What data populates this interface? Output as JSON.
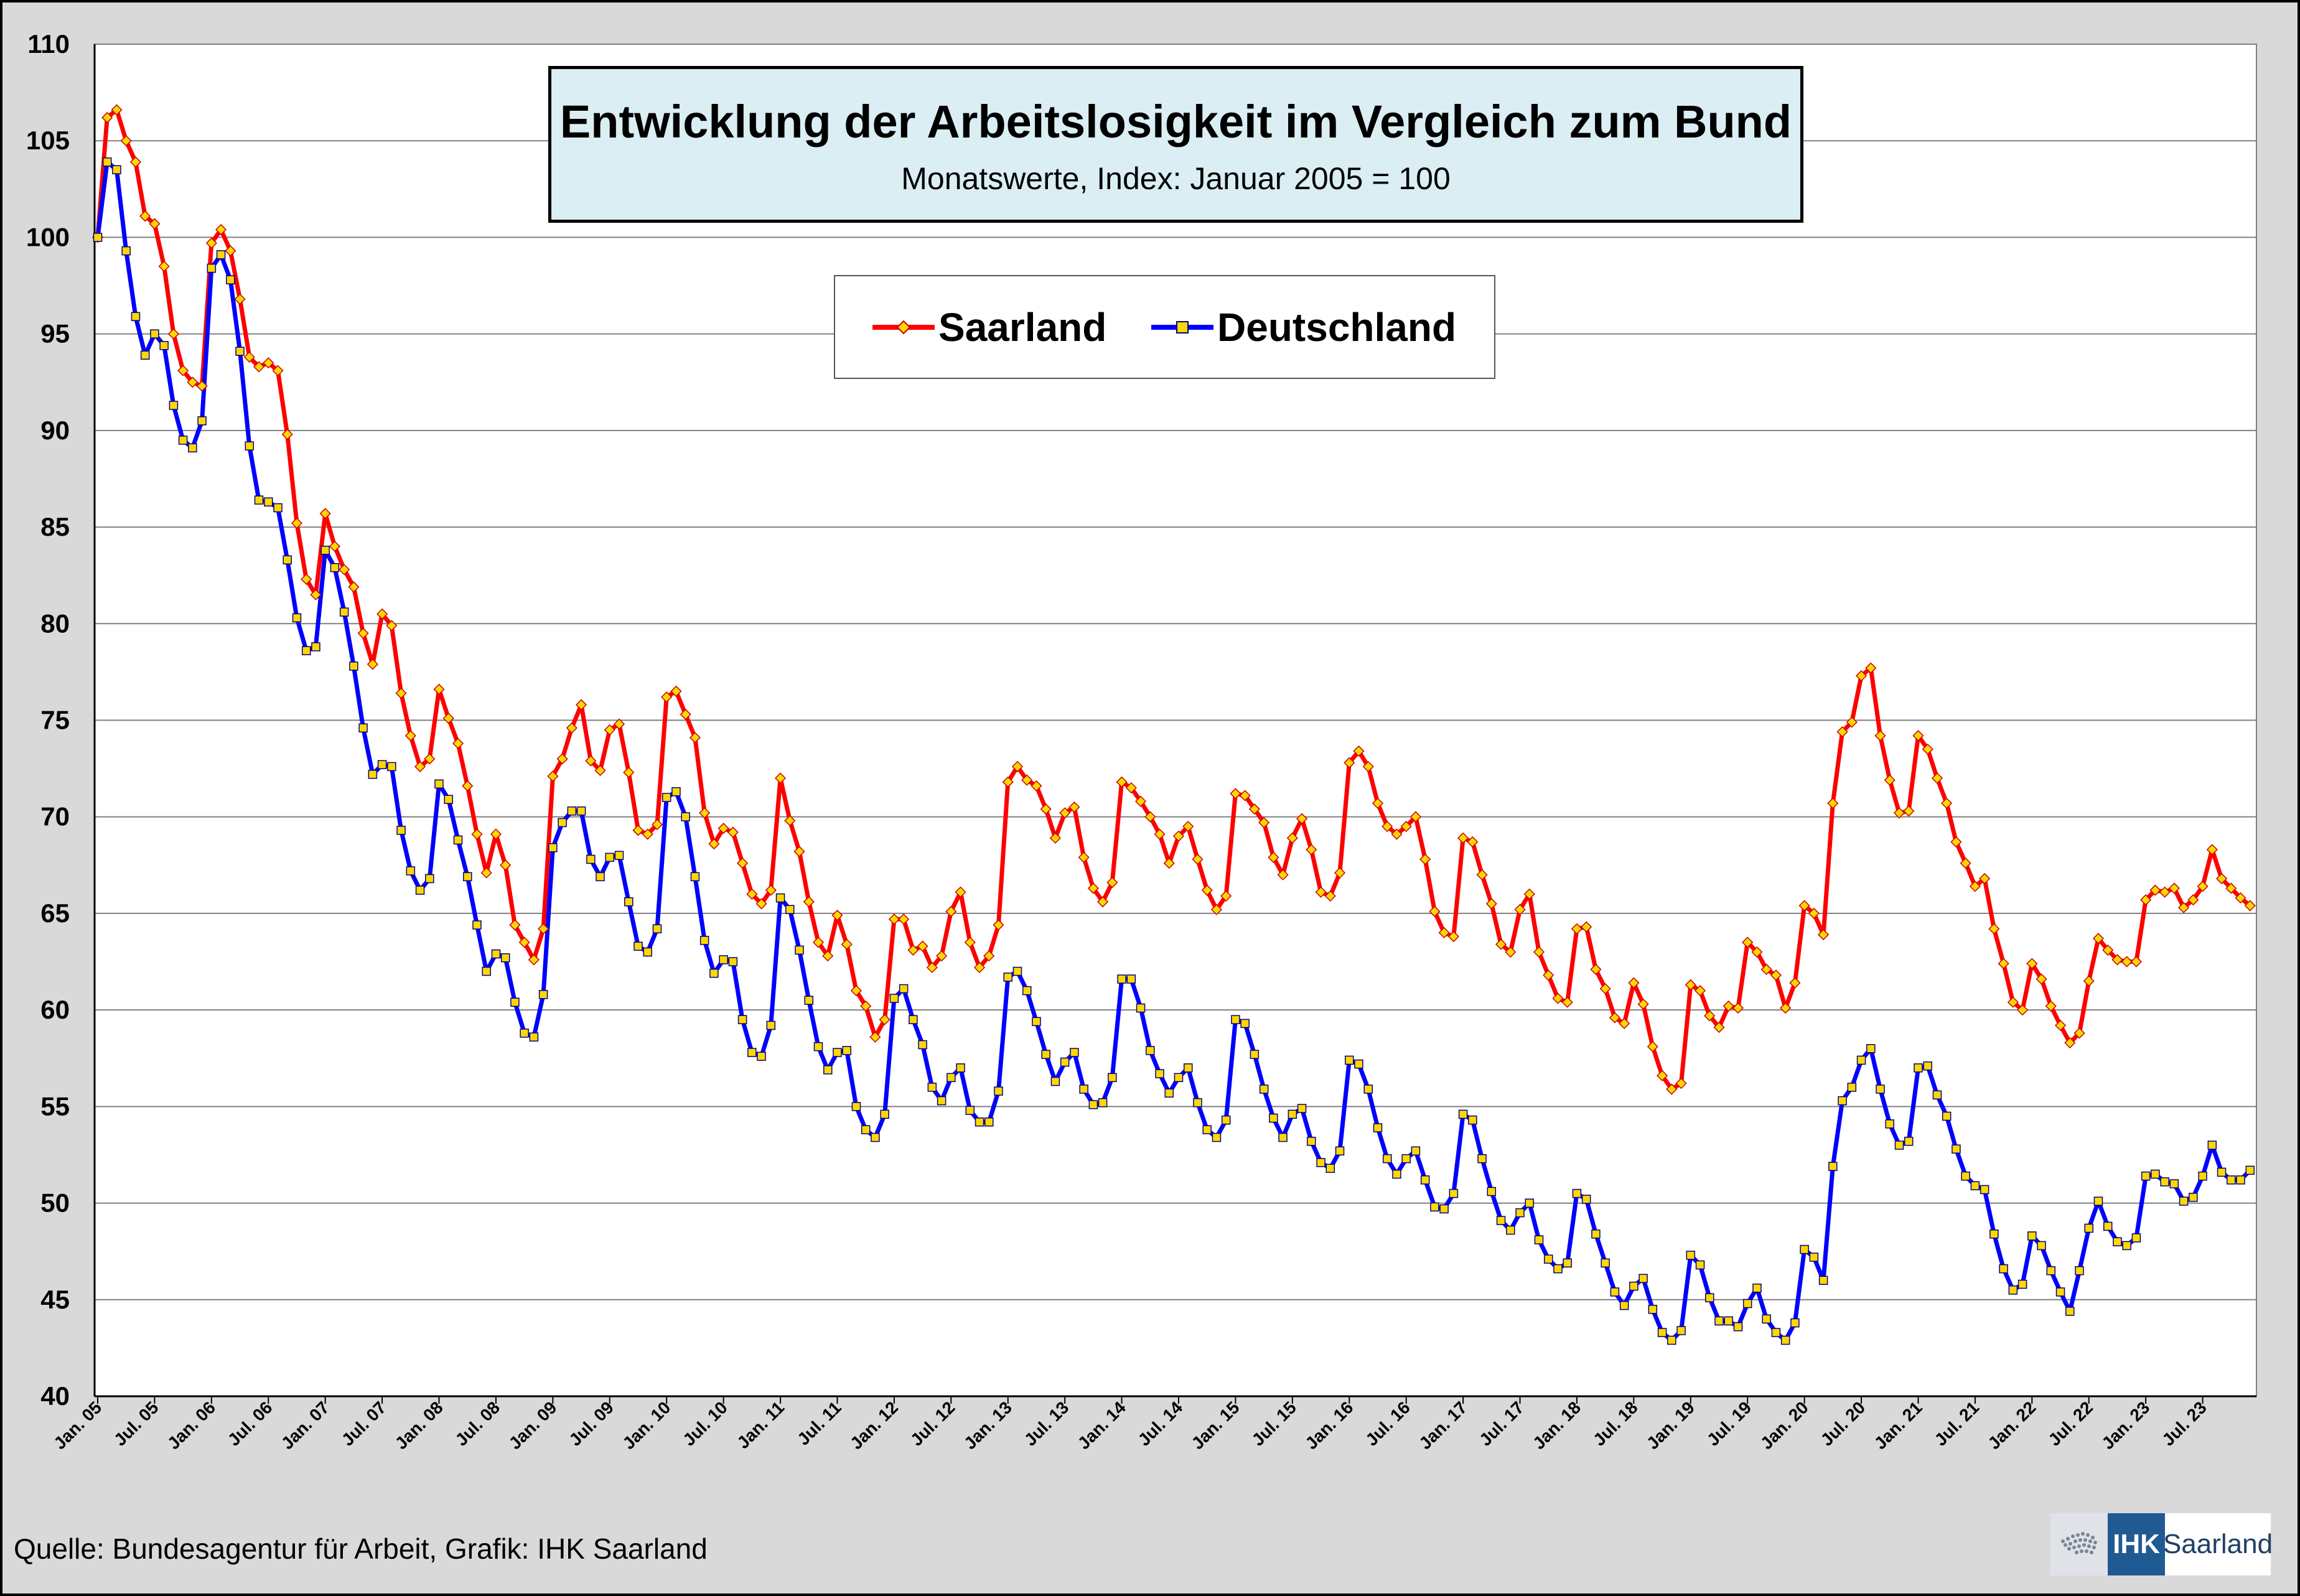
{
  "chart_data": {
    "type": "line",
    "title": "Entwicklung der Arbeitslosigkeit im Vergleich zum Bund",
    "subtitle": "Monatswerte, Index: Januar 2005 = 100",
    "xlabel": "",
    "ylabel": "",
    "ylim": [
      40,
      110
    ],
    "yticks": [
      "40",
      "45",
      "50",
      "55",
      "60",
      "65",
      "70",
      "75",
      "80",
      "85",
      "90",
      "95",
      "100",
      "105",
      "110"
    ],
    "grid": true,
    "legend_position": "top-center",
    "x_tick_labels": [
      "Jan. 05",
      "Jul. 05",
      "Jan. 06",
      "Jul. 06",
      "Jan. 07",
      "Jul. 07",
      "Jan. 08",
      "Jul. 08",
      "Jan. 09",
      "Jul. 09",
      "Jan. 10",
      "Jul. 10",
      "Jan. 11",
      "Jul. 11",
      "Jan. 12",
      "Jul. 12",
      "Jan. 13",
      "Jul. 13",
      "Jan. 14",
      "Jul. 14",
      "Jan. 15",
      "Jul. 15",
      "Jan. 16",
      "Jul. 16",
      "Jan. 17",
      "Jul. 17",
      "Jan. 18",
      "Jul. 18",
      "Jan. 19",
      "Jul. 19",
      "Jan. 20",
      "Jul. 20",
      "Jan. 21",
      "Jul. 21",
      "Jan. 22",
      "Jul. 22",
      "Jan. 23",
      "Jul. 23"
    ],
    "x_range": [
      "Jan. 05",
      "Dec. 23"
    ],
    "series": [
      {
        "name": "Saarland",
        "color": "#ff0000",
        "marker": "diamond",
        "marker_color": "#ffd700",
        "values": [
          100,
          106.2,
          106.6,
          105,
          103.9,
          101.1,
          100.7,
          98.5,
          95,
          93.1,
          92.5,
          92.3,
          99.7,
          100.4,
          99.3,
          96.8,
          93.8,
          93.3,
          93.5,
          93.1,
          89.8,
          85.2,
          82.3,
          81.5,
          85.7,
          84,
          82.8,
          81.9,
          79.5,
          77.9,
          80.5,
          79.9,
          76.4,
          74.2,
          72.6,
          73,
          76.6,
          75.1,
          73.8,
          71.6,
          69.1,
          67.1,
          69.1,
          67.5,
          64.4,
          63.5,
          62.6,
          64.2,
          72.1,
          73,
          74.6,
          75.8,
          72.9,
          72.4,
          74.5,
          74.8,
          72.3,
          69.3,
          69.1,
          69.6,
          76.2,
          76.5,
          75.3,
          74.1,
          70.2,
          68.6,
          69.4,
          69.2,
          67.6,
          66,
          65.5,
          66.2,
          72,
          69.8,
          68.2,
          65.6,
          63.5,
          62.8,
          64.9,
          63.4,
          61,
          60.2,
          58.6,
          59.5,
          64.7,
          64.7,
          63.1,
          63.3,
          62.2,
          62.8,
          65.1,
          66.1,
          63.5,
          62.2,
          62.8,
          64.4,
          71.8,
          72.6,
          71.9,
          71.6,
          70.4,
          68.9,
          70.2,
          70.5,
          67.9,
          66.3,
          65.6,
          66.6,
          71.8,
          71.5,
          70.8,
          70,
          69.1,
          67.6,
          69,
          69.5,
          67.8,
          66.2,
          65.2,
          65.9,
          71.2,
          71.1,
          70.4,
          69.7,
          67.9,
          67,
          68.9,
          69.9,
          68.3,
          66.1,
          65.9,
          67.1,
          72.8,
          73.4,
          72.6,
          70.7,
          69.5,
          69.1,
          69.5,
          70,
          67.8,
          65.1,
          64,
          63.8,
          68.9,
          68.7,
          67,
          65.5,
          63.4,
          63,
          65.2,
          66,
          63,
          61.8,
          60.6,
          60.4,
          64.2,
          64.3,
          62.1,
          61.1,
          59.6,
          59.3,
          61.4,
          60.3,
          58.1,
          56.6,
          55.9,
          56.2,
          61.3,
          61,
          59.7,
          59.1,
          60.2,
          60.1,
          63.5,
          63,
          62.1,
          61.8,
          60.1,
          61.4,
          65.4,
          65,
          63.9,
          70.7,
          74.4,
          74.9,
          77.3,
          77.7,
          74.2,
          71.9,
          70.2,
          70.3,
          74.2,
          73.5,
          72,
          70.7,
          68.7,
          67.6,
          66.4,
          66.8,
          64.2,
          62.4,
          60.4,
          60,
          62.4,
          61.6,
          60.2,
          59.2,
          58.3,
          58.8,
          61.5,
          63.7,
          63.1,
          62.6,
          62.5,
          62.5,
          65.7,
          66.2,
          66.1,
          66.3,
          65.3,
          65.7,
          66.4,
          68.3,
          66.8,
          66.3,
          65.8,
          65.4
        ]
      },
      {
        "name": "Deutschland",
        "color": "#0000ff",
        "marker": "square",
        "marker_color": "#ffd700",
        "values": [
          100,
          103.9,
          103.5,
          99.3,
          95.9,
          93.9,
          95,
          94.4,
          91.3,
          89.5,
          89.1,
          90.5,
          98.4,
          99.1,
          97.8,
          94.1,
          89.2,
          86.4,
          86.3,
          86,
          83.3,
          80.3,
          78.6,
          78.8,
          83.8,
          82.9,
          80.6,
          77.8,
          74.6,
          72.2,
          72.7,
          72.6,
          69.3,
          67.2,
          66.2,
          66.8,
          71.7,
          70.9,
          68.8,
          66.9,
          64.4,
          62,
          62.9,
          62.7,
          60.4,
          58.8,
          58.6,
          60.8,
          68.4,
          69.7,
          70.3,
          70.3,
          67.8,
          66.9,
          67.9,
          68,
          65.6,
          63.3,
          63,
          64.2,
          71,
          71.3,
          70,
          66.9,
          63.6,
          61.9,
          62.6,
          62.5,
          59.5,
          57.8,
          57.6,
          59.2,
          65.8,
          65.2,
          63.1,
          60.5,
          58.1,
          56.9,
          57.8,
          57.9,
          55,
          53.8,
          53.4,
          54.6,
          60.6,
          61.1,
          59.5,
          58.2,
          56,
          55.3,
          56.5,
          57,
          54.8,
          54.2,
          54.2,
          55.8,
          61.7,
          62,
          61,
          59.4,
          57.7,
          56.3,
          57.3,
          57.8,
          55.9,
          55.1,
          55.2,
          56.5,
          61.6,
          61.6,
          60.1,
          57.9,
          56.7,
          55.7,
          56.5,
          57,
          55.2,
          53.8,
          53.4,
          54.3,
          59.5,
          59.3,
          57.7,
          55.9,
          54.4,
          53.4,
          54.6,
          54.9,
          53.2,
          52.1,
          51.8,
          52.7,
          57.4,
          57.2,
          55.9,
          53.9,
          52.3,
          51.5,
          52.3,
          52.7,
          51.2,
          49.8,
          49.7,
          50.5,
          54.6,
          54.3,
          52.3,
          50.6,
          49.1,
          48.6,
          49.5,
          50,
          48.1,
          47.1,
          46.6,
          46.9,
          50.5,
          50.2,
          48.4,
          46.9,
          45.4,
          44.7,
          45.7,
          46.1,
          44.5,
          43.3,
          42.9,
          43.4,
          47.3,
          46.8,
          45.1,
          43.9,
          43.9,
          43.6,
          44.8,
          45.6,
          44,
          43.3,
          42.9,
          43.8,
          47.6,
          47.2,
          46,
          51.9,
          55.3,
          56,
          57.4,
          58,
          55.9,
          54.1,
          53,
          53.2,
          57,
          57.1,
          55.6,
          54.5,
          52.8,
          51.4,
          50.9,
          50.7,
          48.4,
          46.6,
          45.5,
          45.8,
          48.3,
          47.8,
          46.5,
          45.4,
          44.4,
          46.5,
          48.7,
          50.1,
          48.8,
          48,
          47.8,
          48.2,
          51.4,
          51.5,
          51.1,
          51,
          50.1,
          50.3,
          51.4,
          53,
          51.6,
          51.2,
          51.2,
          51.7
        ]
      }
    ]
  },
  "footer": {
    "source": "Quelle: Bundesagentur für Arbeit, Grafik: IHK Saarland"
  },
  "logo": {
    "brand": "IHK",
    "region": "Saarland"
  }
}
